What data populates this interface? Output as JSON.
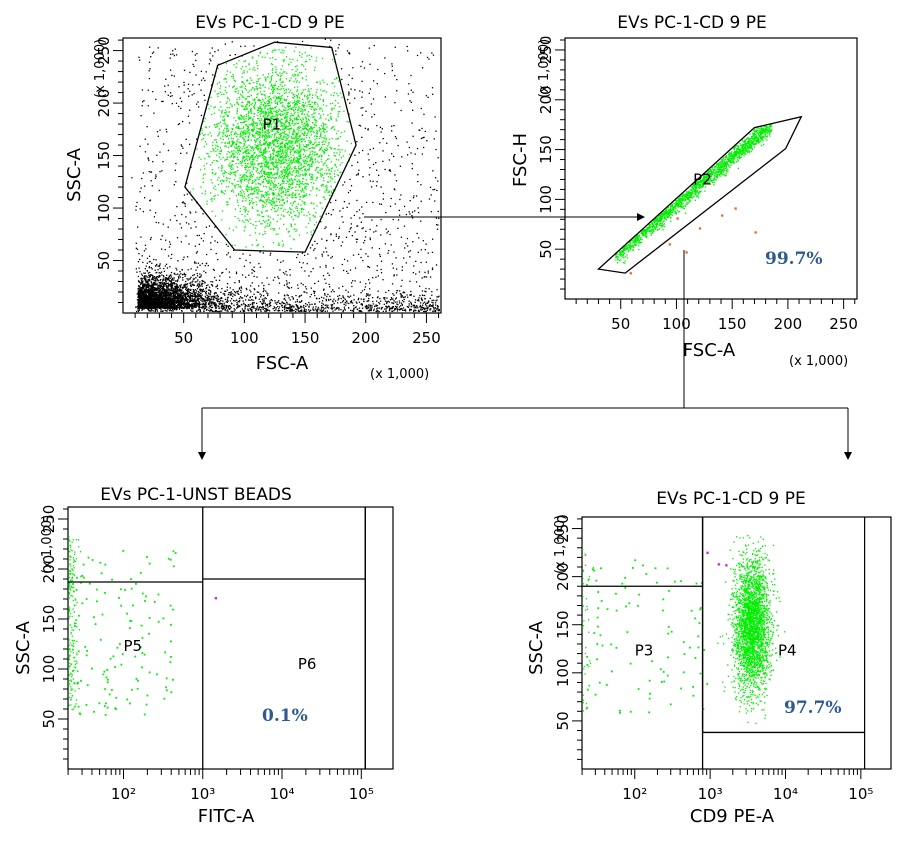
{
  "chart_data": [
    {
      "type": "scatter",
      "id": "fsc-ssc",
      "title": "EVs PC-1-CD 9 PE",
      "xlabel": "FSC-A",
      "ylabel": "SSC-A",
      "x_scale_note": "(x 1,000)",
      "y_scale_note": "(x 1,000)",
      "xscale": "linear",
      "yscale": "linear",
      "xlim": [
        0,
        262
      ],
      "ylim": [
        0,
        262
      ],
      "x_ticks": [
        "50",
        "100",
        "150",
        "200",
        "250"
      ],
      "y_ticks": [
        "50",
        "100",
        "150",
        "200",
        "250"
      ],
      "x_tick_values": [
        50,
        100,
        150,
        200,
        250
      ],
      "y_tick_values": [
        50,
        100,
        150,
        200,
        250
      ],
      "gates": [
        {
          "name": "P1",
          "shape": "polygon",
          "vertices": [
            [
              78,
              236
            ],
            [
              125,
              258
            ],
            [
              172,
              253
            ],
            [
              192,
              160
            ],
            [
              150,
              58
            ],
            [
              92,
              60
            ],
            [
              51,
              120
            ]
          ],
          "label_at": [
            115,
            175
          ]
        }
      ],
      "population_colors": {
        "gated": "#00ee00",
        "ungated": "#000000"
      }
    },
    {
      "type": "scatter",
      "id": "fsc-singlets",
      "title": "EVs PC-1-CD 9 PE",
      "xlabel": "FSC-A",
      "ylabel": "FSC-H",
      "x_scale_note": "(x 1,000)",
      "y_scale_note": "(x 1,000)",
      "xscale": "linear",
      "yscale": "linear",
      "xlim": [
        0,
        262
      ],
      "ylim": [
        0,
        262
      ],
      "x_ticks": [
        "50",
        "100",
        "150",
        "200",
        "250"
      ],
      "y_ticks": [
        "50",
        "100",
        "150",
        "200",
        "250"
      ],
      "x_tick_values": [
        50,
        100,
        150,
        200,
        250
      ],
      "y_tick_values": [
        50,
        100,
        150,
        200,
        250
      ],
      "gates": [
        {
          "name": "P2",
          "shape": "polygon",
          "vertices": [
            [
              30,
              30
            ],
            [
              170,
              172
            ],
            [
              212,
              183
            ],
            [
              198,
              151
            ],
            [
              54,
              26
            ]
          ],
          "label_at": [
            115,
            115
          ]
        }
      ],
      "annotations": [
        {
          "text": "99.7%"
        }
      ],
      "population_colors": {
        "gated": "#00ee00",
        "outliers": "#e8703a"
      }
    },
    {
      "type": "scatter",
      "id": "fitc-control",
      "title": "EVs PC-1-UNST BEADS",
      "xlabel": "FITC-A",
      "ylabel": "SSC-A",
      "y_scale_note": "(x 1,000)",
      "xscale": "log",
      "yscale": "linear",
      "y_ticks": [
        "50",
        "100",
        "150",
        "200",
        "250"
      ],
      "y_tick_values": [
        50,
        100,
        150,
        200,
        250
      ],
      "x_ticks": [
        "10²",
        "10³",
        "10⁴",
        "10⁵"
      ],
      "x_tick_values": [
        2,
        3,
        4,
        5
      ],
      "xlim_log10": [
        1.3,
        5.4
      ],
      "ylim": [
        0,
        262
      ],
      "gates": [
        {
          "name": "P5",
          "shape": "rectangle",
          "x_log10": [
            1.3,
            3.0
          ],
          "y": [
            0,
            187
          ],
          "label_at": [
            2.0,
            118
          ]
        },
        {
          "name": "P6",
          "shape": "rectangle",
          "x_log10": [
            3.0,
            5.05
          ],
          "y": [
            0,
            190
          ],
          "label_at": [
            4.2,
            100
          ]
        }
      ],
      "annotations": [
        {
          "text": "0.1%"
        }
      ],
      "population_colors": {
        "events": "#00ee00",
        "rare": "#cc33cc"
      }
    },
    {
      "type": "scatter",
      "id": "cd9-stained",
      "title": "EVs PC-1-CD 9 PE",
      "xlabel": "CD9 PE-A",
      "ylabel": "SSC-A",
      "y_scale_note": "(x 1,000)",
      "xscale": "log",
      "yscale": "linear",
      "y_ticks": [
        "50",
        "100",
        "150",
        "200",
        "250"
      ],
      "y_tick_values": [
        50,
        100,
        150,
        200,
        250
      ],
      "x_ticks": [
        "10²",
        "10³",
        "10⁴",
        "10⁵"
      ],
      "x_tick_values": [
        2,
        3,
        4,
        5
      ],
      "xlim_log10": [
        1.3,
        5.4
      ],
      "ylim": [
        0,
        262
      ],
      "gates": [
        {
          "name": "P3",
          "shape": "rectangle",
          "x_log10": [
            1.3,
            2.9
          ],
          "y": [
            0,
            190
          ],
          "label_at": [
            2.0,
            118
          ]
        },
        {
          "name": "P4",
          "shape": "rectangle",
          "x_log10": [
            2.9,
            5.05
          ],
          "y": [
            38,
            262
          ],
          "label_at": [
            3.9,
            118
          ]
        }
      ],
      "annotations": [
        {
          "text": "97.7%"
        }
      ],
      "population_colors": {
        "events": "#00ee00",
        "rare": "#cc33cc"
      }
    }
  ]
}
